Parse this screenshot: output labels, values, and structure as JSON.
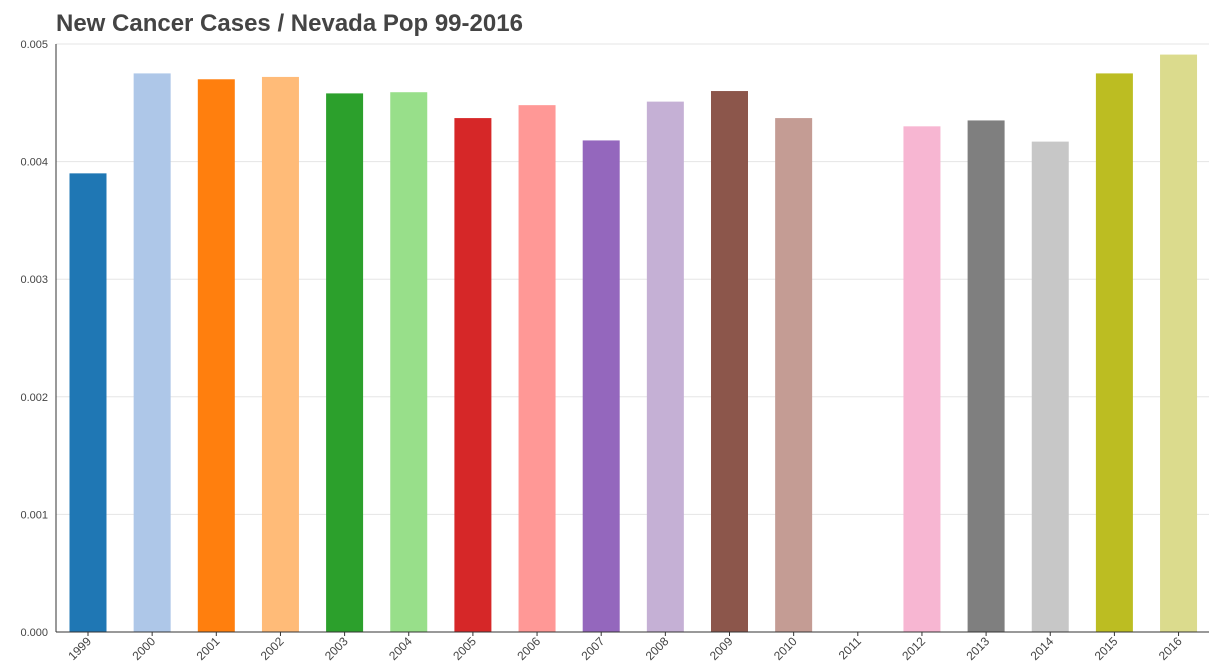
{
  "chart_data": {
    "type": "bar",
    "title": "New Cancer Cases / Nevada Pop 99-2016",
    "xlabel": "",
    "ylabel": "",
    "ylim": [
      0,
      0.005
    ],
    "yticks": [
      0.0,
      0.001,
      0.002,
      0.003,
      0.004,
      0.005
    ],
    "ytick_labels": [
      "0.000",
      "0.001",
      "0.002",
      "0.003",
      "0.004",
      "0.005"
    ],
    "grid": true,
    "categories": [
      "1999",
      "2000",
      "2001",
      "2002",
      "2003",
      "2004",
      "2005",
      "2006",
      "2007",
      "2008",
      "2009",
      "2010",
      "2011",
      "2012",
      "2013",
      "2014",
      "2015",
      "2016"
    ],
    "values": [
      0.0039,
      0.00475,
      0.0047,
      0.00472,
      0.00458,
      0.00459,
      0.00437,
      0.00448,
      0.00418,
      0.00451,
      0.0046,
      0.00437,
      null,
      0.0043,
      0.00435,
      0.00417,
      0.00475,
      0.00491
    ],
    "colors": [
      "#1f77b4",
      "#aec7e8",
      "#ff7f0e",
      "#ffbb78",
      "#2ca02c",
      "#98df8a",
      "#d62728",
      "#ff9896",
      "#9467bd",
      "#c5b0d5",
      "#8c564b",
      "#c49c94",
      "#e377c2",
      "#f7b6d2",
      "#7f7f7f",
      "#c7c7c7",
      "#bcbd22",
      "#dbdb8d"
    ]
  }
}
